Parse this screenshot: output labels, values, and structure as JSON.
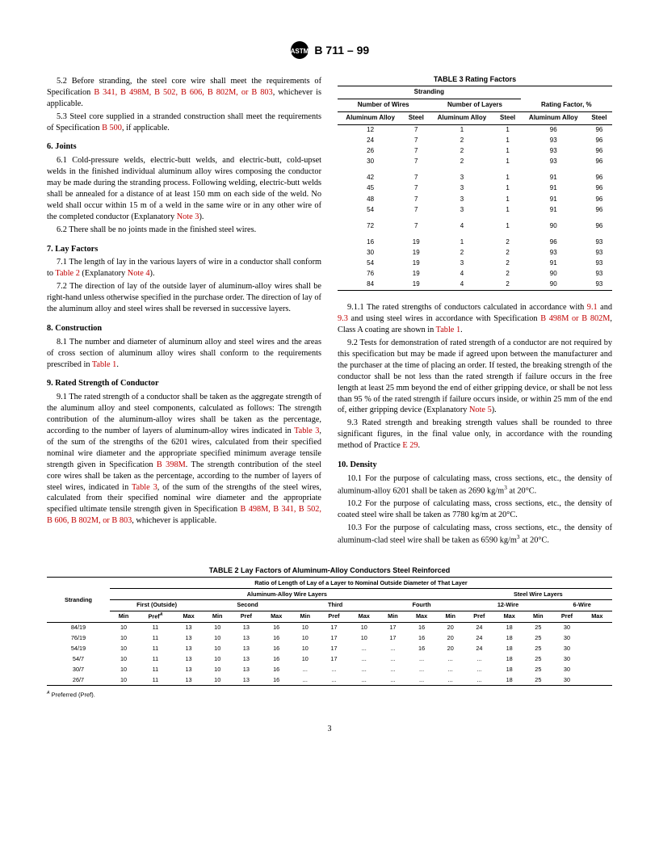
{
  "header": {
    "designation": "B 711 – 99"
  },
  "leftCol": {
    "p52": {
      "num": "5.2",
      "text": "Before stranding, the steel core wire shall meet the requirements of Specification ",
      "link": "B 341,  B 498M, B 502, B 606, B 802M,  or B 803",
      "after": ", whichever is applicable."
    },
    "p53": {
      "num": "5.3",
      "text": "Steel core supplied in a stranded construction shall meet the requirements of Specification ",
      "link": "B 500",
      "after": ", if applicable."
    },
    "s6": "6.  Joints",
    "p61": {
      "num": "6.1",
      "text": "Cold-pressure welds, electric-butt welds, and electric-butt, cold-upset welds in the finished individual aluminum alloy wires composing the conductor may be made during the stranding process. Following welding, electric-butt welds shall be annealed for a distance of at least 150 mm on each side of the weld. No weld shall occur within 15 m of a weld in the same wire or in any other wire of the completed conductor (Explanatory ",
      "link": "Note 3",
      "after": ")."
    },
    "p62": {
      "num": "6.2",
      "text": "There shall be no joints made in the finished steel wires."
    },
    "s7": "7.  Lay Factors",
    "p71": {
      "num": "7.1",
      "text": "The length of lay in the various layers of wire in a conductor shall conform to ",
      "link": "Table 2",
      "mid": " (Explanatory ",
      "link2": "Note 4",
      "after": ")."
    },
    "p72": {
      "num": "7.2",
      "text": "The direction of lay of the outside layer of aluminum-alloy wires shall be right-hand unless otherwise specified in the purchase order. The direction of lay of the aluminum alloy and steel wires shall be reversed in successive layers."
    },
    "s8": "8.  Construction",
    "p81": {
      "num": "8.1",
      "text": "The number and diameter of aluminum alloy and steel wires and the areas of cross section of aluminum alloy wires shall conform to the requirements prescribed in ",
      "link": "Table 1",
      "after": "."
    },
    "s9": "9.  Rated Strength of Conductor",
    "p91": {
      "num": "9.1",
      "pt1": "The rated strength of a conductor shall be taken as the aggregate strength of the aluminum alloy and steel components, calculated as follows: The strength contribution of the aluminum-alloy wires shall be taken as the percentage, according to the number of layers of aluminum-alloy wires indicated in ",
      "l1": "Table 3",
      "pt2": ", of the sum of the strengths of the 6201 wires, calculated from their specified nominal wire diameter and the appropriate specified minimum average tensile strength given in Specification ",
      "l2": "B 398M",
      "pt3": ". The strength contribution of the steel core wires shall be taken as the percentage, according to the number of layers of steel wires, indicated in ",
      "l3": "Table 3",
      "pt4": ", of the sum of the strengths of the steel wires, calculated from their specified nominal wire diameter and the appropriate specified ultimate tensile strength given in Specification ",
      "l4": "B 498M, B 341, B 502, B 606, B 802M, or B 803",
      "pt5": ", whichever is applicable."
    }
  },
  "rightCol": {
    "p911": {
      "num": "9.1.1",
      "t1": "The rated strengths of conductors calculated in accordance with ",
      "l1": "9.1",
      "t2": " and ",
      "l2": "9.3",
      "t3": " and using steel wires in accordance with Specification ",
      "l3": "B 498M or B 802M",
      "t4": ", Class A coating are shown in ",
      "l4": "Table 1",
      "t5": "."
    },
    "p92": {
      "num": "9.2",
      "text": "Tests for demonstration of rated strength of a conductor are not required by this specification but may be made if agreed upon between the manufacturer and the purchaser at the time of placing an order. If tested, the breaking strength of the conductor shall be not less than the rated strength if failure occurs in the free length at least 25 mm beyond the end of either gripping device, or shall be not less than 95 % of the rated strength if failure occurs inside, or within 25 mm of the end of, either gripping device (Explanatory ",
      "link": "Note 5",
      "after": ")."
    },
    "p93": {
      "num": "9.3",
      "text": "Rated strength and breaking strength values shall be rounded to three significant figures, in the final value only, in accordance with the rounding method of Practice ",
      "link": "E 29",
      "after": "."
    },
    "s10": "10.  Density",
    "p101": {
      "num": "10.1",
      "text": "For the purpose of calculating mass, cross sections, etc., the density of aluminum-alloy 6201 shall be taken as 2690 kg/m",
      "sup": "3",
      "after": " at 20°C."
    },
    "p102": {
      "num": "10.2",
      "text": "For the purpose of calculating mass, cross sections, etc., the density of coated steel wire shall be taken as 7780 kg/m  at 20°C."
    },
    "p103": {
      "num": "10.3",
      "text": "For the purpose of calculating mass, cross sections, etc., the density of aluminum-clad steel wire shall be taken as 6590 kg/m",
      "sup": "3",
      "after": " at 20°C."
    }
  },
  "table3": {
    "caption": "TABLE 3  Rating Factors",
    "h1": "Stranding",
    "h2a": "Number of Wires",
    "h2b": "Number of Layers",
    "h2c": "Rating Factor, %",
    "h3a": "Aluminum Alloy",
    "h3b": "Steel",
    "rows": [
      [
        "12",
        "7",
        "1",
        "1",
        "96",
        "96"
      ],
      [
        "24",
        "7",
        "2",
        "1",
        "93",
        "96"
      ],
      [
        "26",
        "7",
        "2",
        "1",
        "93",
        "96"
      ],
      [
        "30",
        "7",
        "2",
        "1",
        "93",
        "96"
      ]
    ],
    "rows2": [
      [
        "42",
        "7",
        "3",
        "1",
        "91",
        "96"
      ],
      [
        "45",
        "7",
        "3",
        "1",
        "91",
        "96"
      ],
      [
        "48",
        "7",
        "3",
        "1",
        "91",
        "96"
      ],
      [
        "54",
        "7",
        "3",
        "1",
        "91",
        "96"
      ]
    ],
    "rows3": [
      [
        "72",
        "7",
        "4",
        "1",
        "90",
        "96"
      ]
    ],
    "rows4": [
      [
        "16",
        "19",
        "1",
        "2",
        "96",
        "93"
      ],
      [
        "30",
        "19",
        "2",
        "2",
        "93",
        "93"
      ],
      [
        "54",
        "19",
        "3",
        "2",
        "91",
        "93"
      ],
      [
        "76",
        "19",
        "4",
        "2",
        "90",
        "93"
      ],
      [
        "84",
        "19",
        "4",
        "2",
        "90",
        "93"
      ]
    ]
  },
  "table2": {
    "caption": "TABLE 2  Lay Factors of Aluminum-Alloy Conductors Steel Reinforced",
    "h_main": "Ratio of Length of Lay of a Layer to Nominal Outside Diameter of That Layer",
    "h_al": "Aluminum-Alloy Wire Layers",
    "h_st": "Steel Wire Layers",
    "h_first": "First (Outside)",
    "h_second": "Second",
    "h_third": "Third",
    "h_fourth": "Fourth",
    "h_12w": "12-Wire",
    "h_6w": "6-Wire",
    "h_strand": "Stranding",
    "h_min": "Min",
    "h_pref": "Pref",
    "h_prefA": "Pref",
    "h_max": "Max",
    "rows": [
      [
        "84/19",
        "10",
        "11",
        "13",
        "10",
        "13",
        "16",
        "10",
        "17",
        "10",
        "17",
        "16",
        "20",
        "24",
        "18",
        "25",
        "30"
      ],
      [
        "76/19",
        "10",
        "11",
        "13",
        "10",
        "13",
        "16",
        "10",
        "17",
        "10",
        "17",
        "16",
        "20",
        "24",
        "18",
        "25",
        "30"
      ],
      [
        "54/19",
        "10",
        "11",
        "13",
        "10",
        "13",
        "16",
        "10",
        "17",
        "...",
        "...",
        "16",
        "20",
        "24",
        "18",
        "25",
        "30"
      ],
      [
        "54/7",
        "10",
        "11",
        "13",
        "10",
        "13",
        "16",
        "10",
        "17",
        "...",
        "...",
        "...",
        "...",
        "...",
        "18",
        "25",
        "30"
      ],
      [
        "30/7",
        "10",
        "11",
        "13",
        "10",
        "13",
        "16",
        "...",
        "...",
        "...",
        "...",
        "...",
        "...",
        "...",
        "18",
        "25",
        "30"
      ],
      [
        "26/7",
        "10",
        "11",
        "13",
        "10",
        "13",
        "16",
        "...",
        "...",
        "...",
        "...",
        "...",
        "...",
        "...",
        "18",
        "25",
        "30"
      ]
    ],
    "footA": "A",
    "footnote": "Preferred (Pref)."
  },
  "pageNum": "3"
}
